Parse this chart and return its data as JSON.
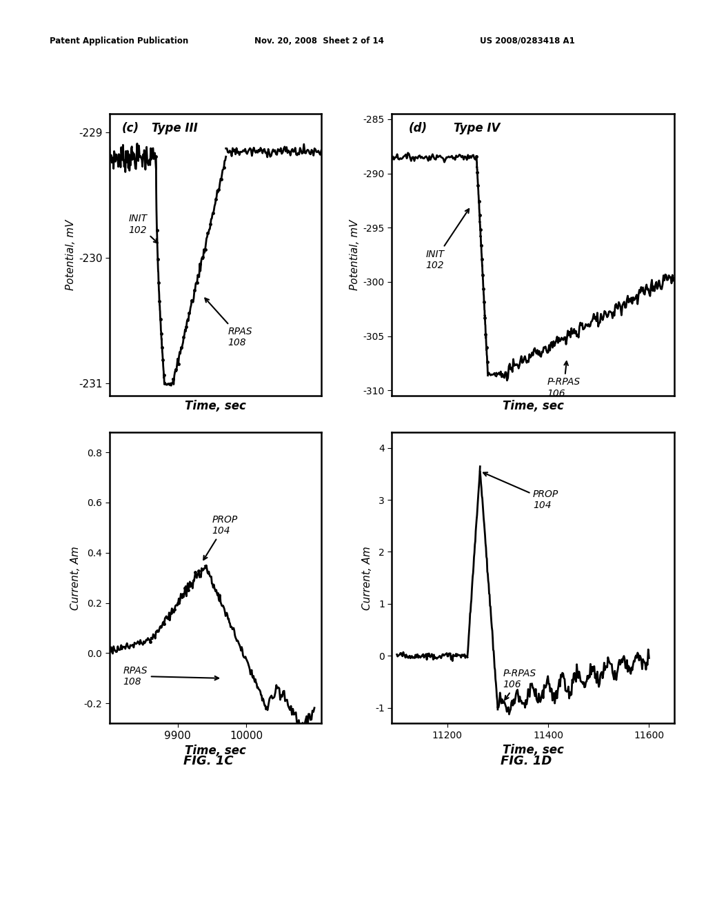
{
  "header_left": "Patent Application Publication",
  "header_mid": "Nov. 20, 2008  Sheet 2 of 14",
  "header_right": "US 2008/0283418 A1",
  "fig1c_label": "FIG. 1C",
  "fig1d_label": "FIG. 1D",
  "background_color": "#ffffff",
  "text_color": "#000000"
}
